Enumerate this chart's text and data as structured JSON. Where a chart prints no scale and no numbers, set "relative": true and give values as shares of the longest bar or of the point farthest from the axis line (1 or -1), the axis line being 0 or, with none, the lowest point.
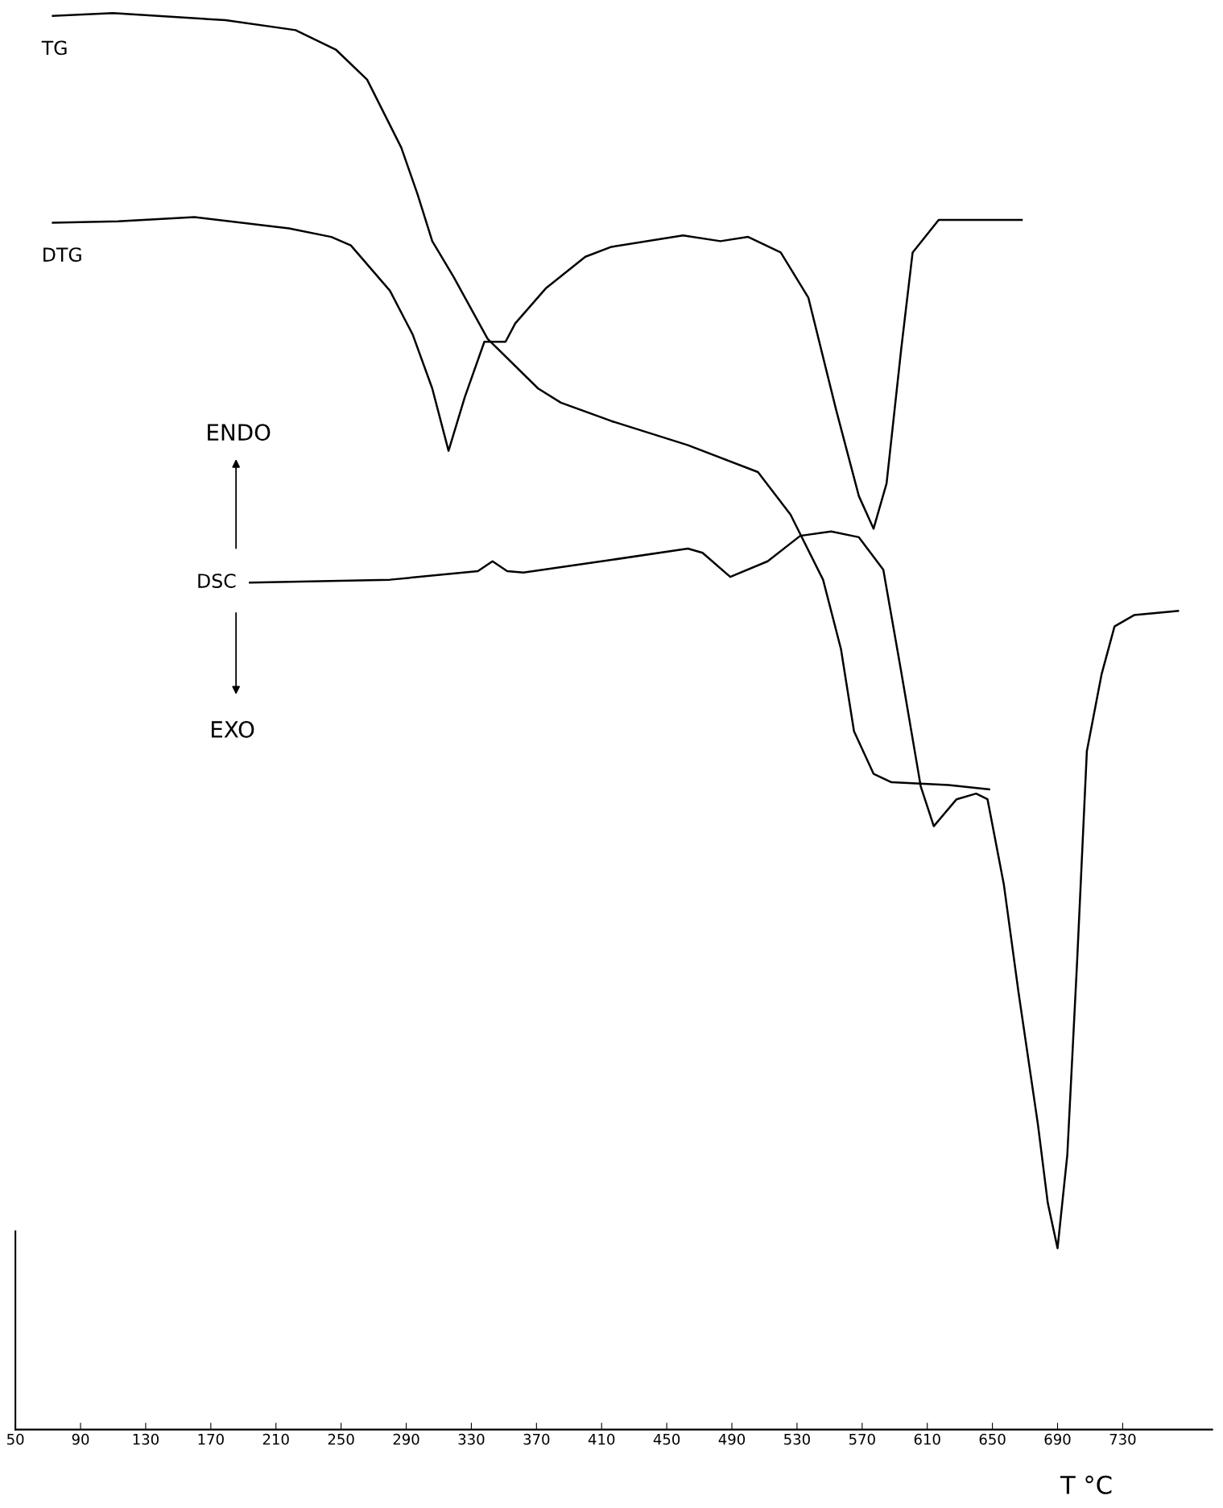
{
  "chart_data": {
    "type": "line",
    "relative": true,
    "xlabel": "T °C",
    "xlim": [
      50,
      785
    ],
    "xticks": [
      50,
      90,
      130,
      170,
      210,
      250,
      290,
      330,
      370,
      410,
      450,
      490,
      530,
      570,
      610,
      650,
      690,
      730
    ],
    "tick_labels": "x",
    "grid": false,
    "legend": false,
    "marker": "none",
    "line_style": "solid",
    "annotations": [
      "ENDO",
      "EXO"
    ],
    "series": [
      {
        "name": "TG",
        "color": "#000000",
        "x": [
          73,
          110,
          179,
          222,
          247,
          266,
          287,
          297,
          306,
          319,
          340,
          371,
          385,
          416,
          463,
          506,
          526,
          546,
          557,
          565,
          577,
          588,
          623,
          648
        ],
        "values": [
          0.998,
          1.0,
          0.995,
          0.988,
          0.974,
          0.953,
          0.905,
          0.872,
          0.839,
          0.814,
          0.77,
          0.735,
          0.725,
          0.712,
          0.695,
          0.676,
          0.646,
          0.6,
          0.551,
          0.493,
          0.463,
          0.457,
          0.455,
          0.452
        ]
      },
      {
        "name": "DTG",
        "color": "#000000",
        "x": [
          73,
          113,
          160,
          218,
          244,
          256,
          280,
          294,
          306,
          316,
          326,
          338,
          345,
          351,
          357,
          376,
          400,
          416,
          460,
          483,
          500,
          520,
          537,
          554,
          568,
          577,
          585,
          594,
          601,
          617,
          648,
          668
        ],
        "values": [
          0.852,
          0.853,
          0.856,
          0.848,
          0.842,
          0.836,
          0.804,
          0.773,
          0.735,
          0.691,
          0.729,
          0.768,
          0.768,
          0.768,
          0.781,
          0.806,
          0.828,
          0.835,
          0.843,
          0.839,
          0.842,
          0.831,
          0.799,
          0.72,
          0.659,
          0.636,
          0.668,
          0.763,
          0.831,
          0.854,
          0.854,
          0.854
        ]
      },
      {
        "name": "DSC",
        "color": "#000000",
        "x": [
          194,
          280,
          334,
          343,
          352,
          362,
          416,
          463,
          472,
          489,
          512,
          532,
          551,
          568,
          583,
          594,
          606,
          614,
          628,
          640,
          647,
          657,
          666,
          678,
          684,
          690,
          696,
          702,
          708,
          717,
          725,
          737,
          764
        ],
        "values": [
          0.598,
          0.6,
          0.606,
          0.613,
          0.606,
          0.605,
          0.614,
          0.622,
          0.619,
          0.602,
          0.613,
          0.631,
          0.634,
          0.63,
          0.607,
          0.535,
          0.454,
          0.426,
          0.445,
          0.449,
          0.445,
          0.385,
          0.309,
          0.215,
          0.16,
          0.128,
          0.194,
          0.33,
          0.479,
          0.533,
          0.567,
          0.575,
          0.578
        ]
      }
    ]
  }
}
